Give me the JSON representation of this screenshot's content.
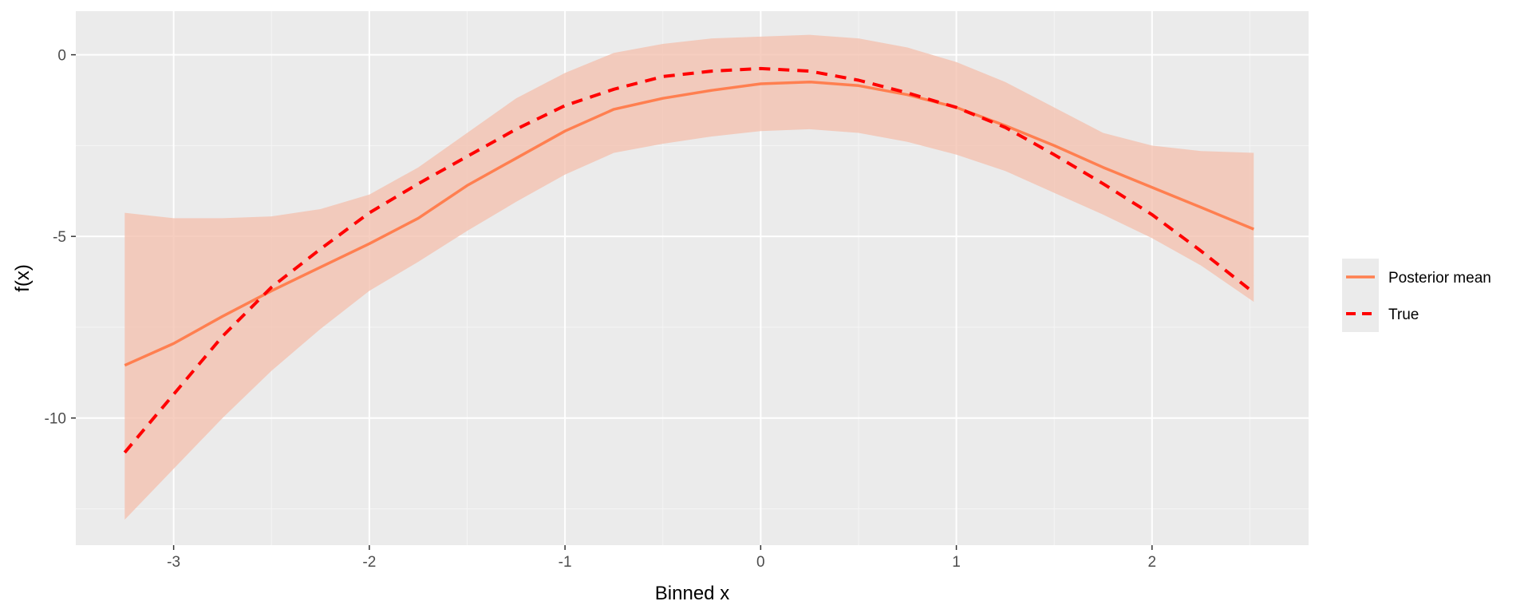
{
  "chart_data": {
    "type": "line",
    "title": "",
    "xlabel": "Binned x",
    "ylabel": "f(x)",
    "xlim": [
      -3.5,
      2.8
    ],
    "ylim": [
      -13.5,
      1.2
    ],
    "x_ticks": [
      -3,
      -2,
      -1,
      0,
      1,
      2
    ],
    "x_tick_labels": [
      "-3",
      "-2",
      "-1",
      "0",
      "1",
      "2"
    ],
    "y_ticks": [
      0,
      -5,
      -10
    ],
    "y_tick_labels": [
      "0",
      "-5",
      "-10"
    ],
    "grid": true,
    "legend_position": "right",
    "x": [
      -3.25,
      -3.0,
      -2.75,
      -2.5,
      -2.25,
      -2.0,
      -1.75,
      -1.5,
      -1.25,
      -1.0,
      -0.75,
      -0.5,
      -0.25,
      0.0,
      0.25,
      0.5,
      0.75,
      1.0,
      1.25,
      1.5,
      1.75,
      2.0,
      2.25,
      2.52
    ],
    "series": [
      {
        "name": "Posterior mean",
        "style": "solid",
        "color": "#ff7f50",
        "values": [
          -8.55,
          -7.95,
          -7.2,
          -6.5,
          -5.85,
          -5.2,
          -4.5,
          -3.6,
          -2.85,
          -2.1,
          -1.5,
          -1.2,
          -0.98,
          -0.8,
          -0.75,
          -0.85,
          -1.1,
          -1.45,
          -1.95,
          -2.5,
          -3.1,
          -3.65,
          -4.2,
          -4.8
        ]
      },
      {
        "name": "True",
        "style": "dashed",
        "color": "#ff0000",
        "values": [
          -10.95,
          -9.35,
          -7.75,
          -6.4,
          -5.35,
          -4.35,
          -3.55,
          -2.8,
          -2.05,
          -1.4,
          -0.95,
          -0.6,
          -0.45,
          -0.38,
          -0.45,
          -0.7,
          -1.05,
          -1.45,
          -2.0,
          -2.75,
          -3.55,
          -4.4,
          -5.4,
          -6.55
        ]
      }
    ],
    "band": {
      "color": "#f4c2b0",
      "lower": [
        -12.8,
        -11.4,
        -10.0,
        -8.7,
        -7.55,
        -6.5,
        -5.7,
        -4.85,
        -4.05,
        -3.3,
        -2.7,
        -2.45,
        -2.25,
        -2.1,
        -2.05,
        -2.15,
        -2.4,
        -2.75,
        -3.2,
        -3.8,
        -4.4,
        -5.05,
        -5.8,
        -6.8
      ],
      "upper": [
        -4.35,
        -4.5,
        -4.5,
        -4.45,
        -4.25,
        -3.85,
        -3.1,
        -2.15,
        -1.2,
        -0.5,
        0.05,
        0.3,
        0.45,
        0.5,
        0.55,
        0.45,
        0.2,
        -0.2,
        -0.75,
        -1.45,
        -2.15,
        -2.5,
        -2.65,
        -2.7
      ]
    }
  }
}
